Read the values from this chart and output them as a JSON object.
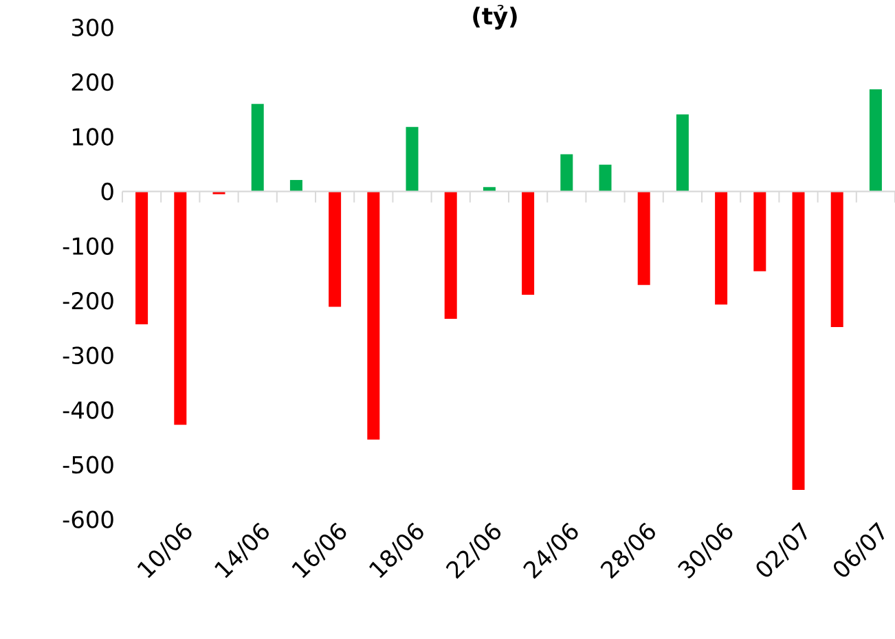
{
  "chart_data": {
    "type": "bar",
    "title": "(tỷ)",
    "categories": [
      null,
      "10/06",
      null,
      "14/06",
      null,
      "16/06",
      null,
      "18/06",
      null,
      "22/06",
      null,
      "24/06",
      null,
      "28/06",
      null,
      "30/06",
      null,
      "02/07",
      null,
      "06/07"
    ],
    "values": [
      -243,
      -427,
      -5,
      160,
      21,
      -211,
      -454,
      118,
      -233,
      8,
      -189,
      68,
      49,
      -171,
      141,
      -207,
      -146,
      -546,
      -248,
      187
    ],
    "colors": [
      "#ff0000",
      "#ff0000",
      "#ff0000",
      "#00b050",
      "#00b050",
      "#ff0000",
      "#ff0000",
      "#00b050",
      "#ff0000",
      "#00b050",
      "#ff0000",
      "#00b050",
      "#00b050",
      "#ff0000",
      "#00b050",
      "#ff0000",
      "#ff0000",
      "#ff0000",
      "#ff0000",
      "#00b050"
    ],
    "ylim": [
      -600,
      300
    ],
    "yticks": [
      -600,
      -500,
      -400,
      -300,
      -200,
      -100,
      0,
      100,
      200,
      300
    ]
  }
}
